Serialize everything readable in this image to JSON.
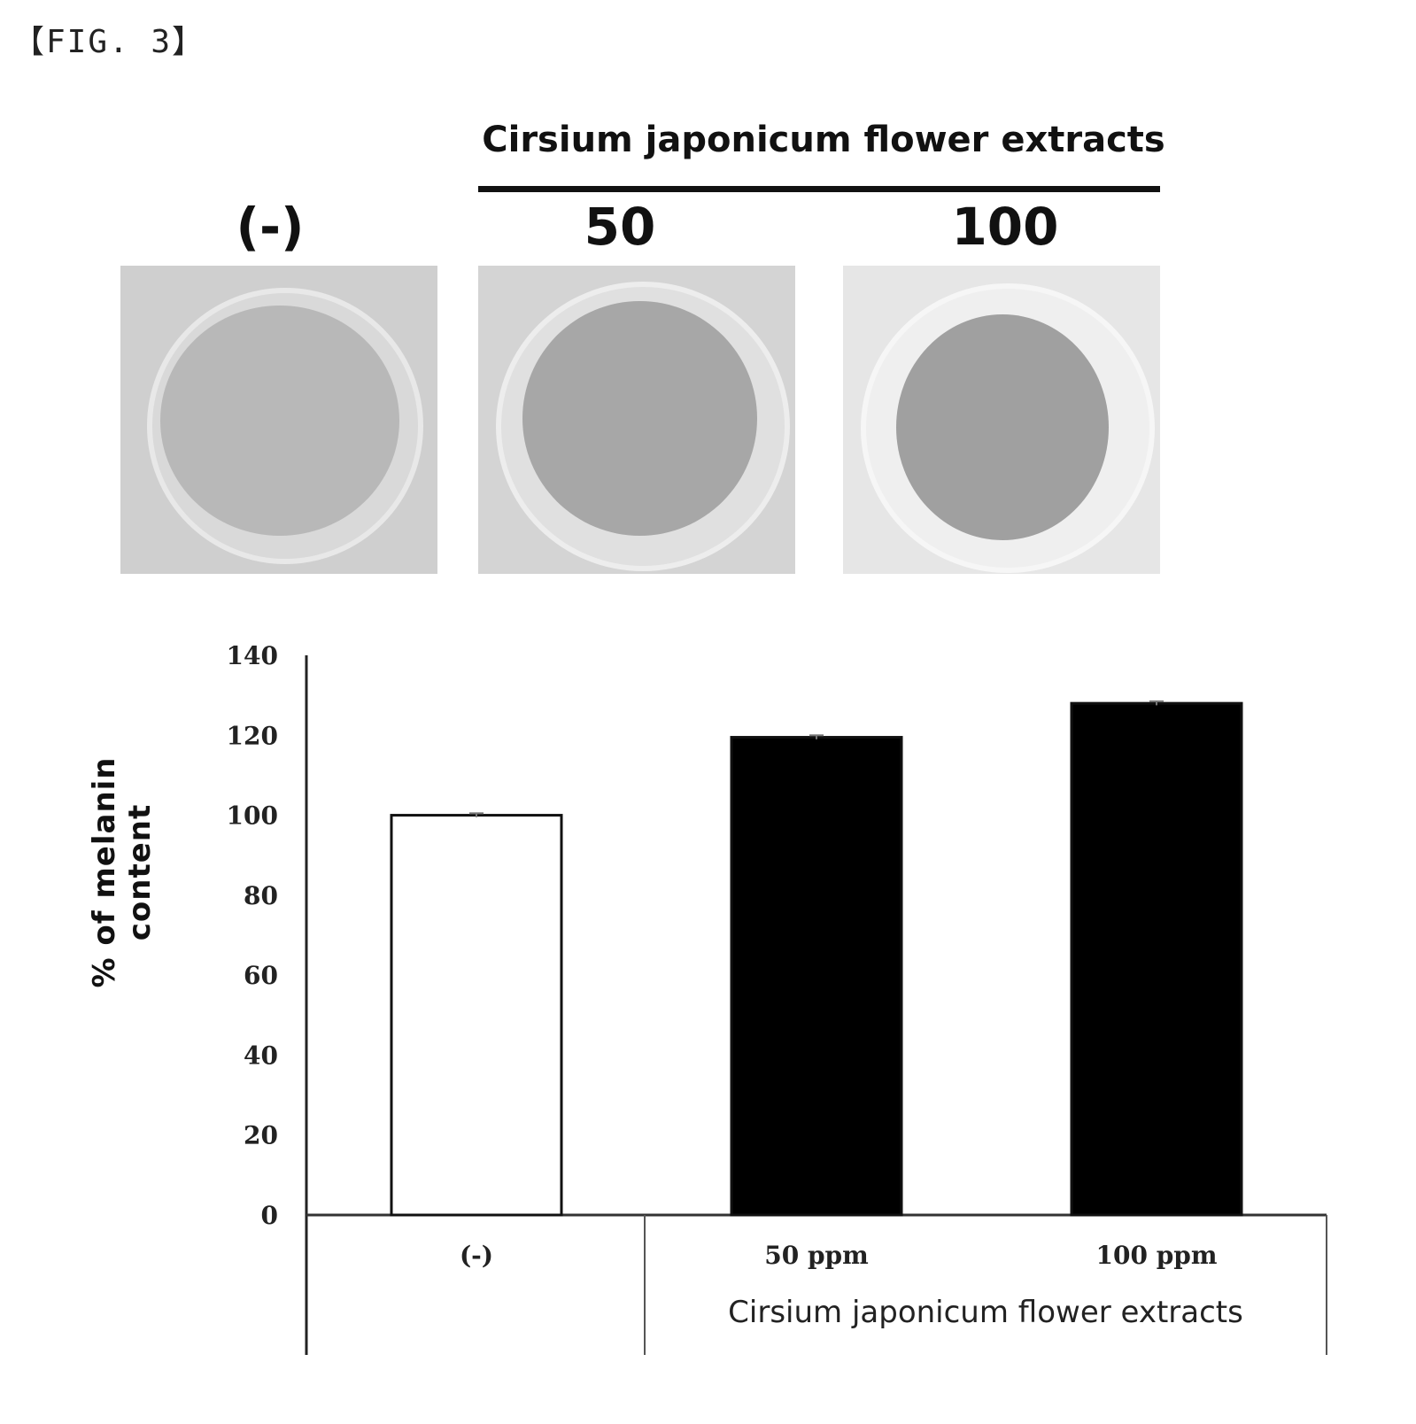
{
  "figure_label": "【FIG. 3】",
  "photo_panel": {
    "group_title": "Cirsium japonicum flower extracts",
    "labels": [
      "(-)",
      "50",
      "100"
    ]
  },
  "chart_data": {
    "type": "bar",
    "categories": [
      "(-)",
      "50 ppm",
      "100 ppm"
    ],
    "values": [
      100,
      119.5,
      128
    ],
    "error": [
      0.5,
      0.5,
      0.5
    ],
    "bar_colors": [
      "#ffffff",
      "#000000",
      "#000000"
    ],
    "ylabel": "% of melanin content",
    "ylim": [
      0,
      140
    ],
    "yticks": [
      0,
      20,
      40,
      60,
      80,
      100,
      120,
      140
    ],
    "x_group_label": "Cirsium japonicum flower extracts",
    "grid": false
  }
}
